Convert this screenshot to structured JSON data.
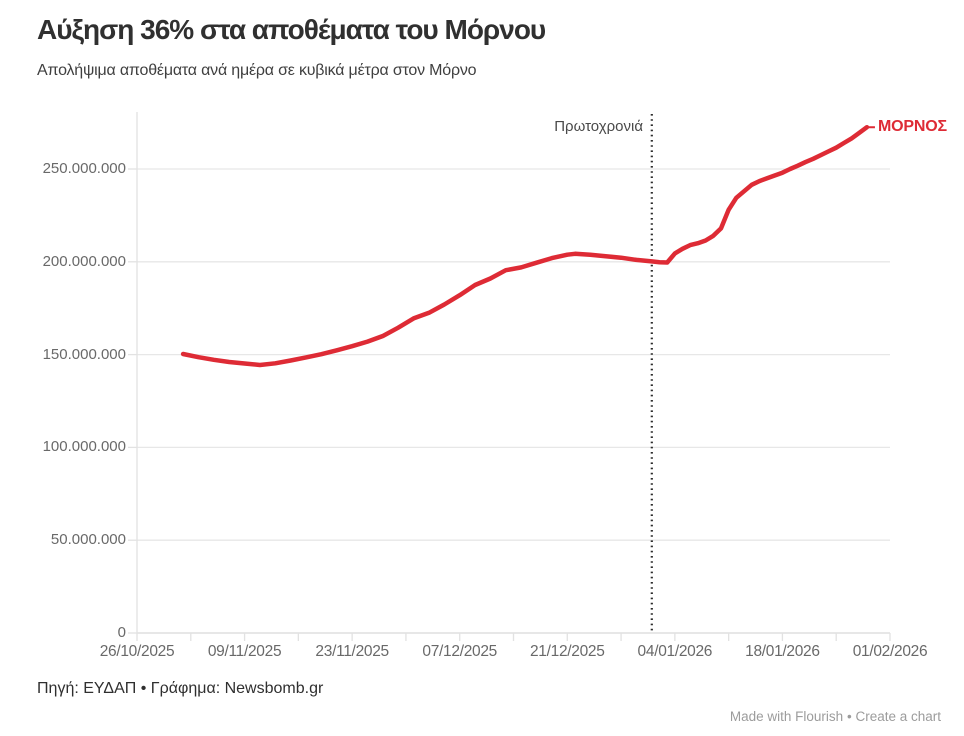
{
  "header": {
    "title": "Αύξηση 36% στα αποθέματα του Μόρνου",
    "subtitle": "Απολήψιμα αποθέματα ανά ημέρα σε κυβικά μέτρα στον Μόρνο"
  },
  "annotations": {
    "event_label": "Πρωτοχρονιά",
    "series_label": "ΜΟΡΝΟΣ"
  },
  "footer": {
    "source": "Πηγή: ΕΥΔΑΠ • Γράφημα: Newsbomb.gr",
    "made_with": "Made with Flourish",
    "separator": "•",
    "create_chart": "Create a chart"
  },
  "colors": {
    "line": "#de2b35",
    "grid": "#e7e7e7",
    "axis": "#e2e2e2",
    "event_line": "#2b2b2b",
    "axis_text": "#696969"
  },
  "chart_data": {
    "type": "line",
    "title": "Αύξηση 36% στα αποθέματα του Μόρνου",
    "subtitle": "Απολήψιμα αποθέματα ανά ημέρα σε κυβικά μέτρα στον Μόρνο",
    "xlabel": "",
    "ylabel": "",
    "grid": "horizontal",
    "legend": "none",
    "x_domain": [
      "26/10/2025",
      "01/02/2026"
    ],
    "x_tick_labels": [
      "26/10/2025",
      "09/11/2025",
      "23/11/2025",
      "07/12/2025",
      "21/12/2025",
      "04/01/2026",
      "18/01/2026",
      "01/02/2026"
    ],
    "minor_tick_interval_days": 7,
    "y_ticks": [
      0,
      50000000,
      100000000,
      150000000,
      200000000,
      250000000
    ],
    "y_tick_labels": [
      "0",
      "50.000.000",
      "100.000.000",
      "150.000.000",
      "200.000.000",
      "250.000.000"
    ],
    "ylim": [
      0,
      275000000
    ],
    "event_line": {
      "date": "01/01/2026",
      "label": "Πρωτοχρονιά",
      "style": "dotted"
    },
    "series": [
      {
        "name": "ΜΟΡΝΟΣ",
        "color": "#de2b35",
        "points": [
          [
            "01/11/2025",
            150300000
          ],
          [
            "03/11/2025",
            148600000
          ],
          [
            "05/11/2025",
            147200000
          ],
          [
            "07/11/2025",
            146000000
          ],
          [
            "09/11/2025",
            145200000
          ],
          [
            "11/11/2025",
            144400000
          ],
          [
            "13/11/2025",
            145300000
          ],
          [
            "15/11/2025",
            146800000
          ],
          [
            "17/11/2025",
            148500000
          ],
          [
            "19/11/2025",
            150200000
          ],
          [
            "21/11/2025",
            152300000
          ],
          [
            "23/11/2025",
            154500000
          ],
          [
            "25/11/2025",
            157000000
          ],
          [
            "27/11/2025",
            160000000
          ],
          [
            "29/11/2025",
            164500000
          ],
          [
            "01/12/2025",
            169500000
          ],
          [
            "03/12/2025",
            172500000
          ],
          [
            "05/12/2025",
            177000000
          ],
          [
            "07/12/2025",
            182000000
          ],
          [
            "09/12/2025",
            187500000
          ],
          [
            "11/12/2025",
            191000000
          ],
          [
            "13/12/2025",
            195500000
          ],
          [
            "15/12/2025",
            197000000
          ],
          [
            "17/12/2025",
            199500000
          ],
          [
            "19/12/2025",
            202000000
          ],
          [
            "21/12/2025",
            203800000
          ],
          [
            "22/12/2025",
            204300000
          ],
          [
            "24/12/2025",
            203800000
          ],
          [
            "26/12/2025",
            203000000
          ],
          [
            "28/12/2025",
            202200000
          ],
          [
            "30/12/2025",
            201000000
          ],
          [
            "01/01/2026",
            200200000
          ],
          [
            "02/01/2026",
            199800000
          ],
          [
            "03/01/2026",
            199600000
          ],
          [
            "04/01/2026",
            204500000
          ],
          [
            "05/01/2026",
            207000000
          ],
          [
            "06/01/2026",
            209000000
          ],
          [
            "07/01/2026",
            210000000
          ],
          [
            "08/01/2026",
            211500000
          ],
          [
            "09/01/2026",
            214000000
          ],
          [
            "10/01/2026",
            218000000
          ],
          [
            "11/01/2026",
            228000000
          ],
          [
            "12/01/2026",
            234500000
          ],
          [
            "13/01/2026",
            238000000
          ],
          [
            "14/01/2026",
            241500000
          ],
          [
            "15/01/2026",
            243500000
          ],
          [
            "16/01/2026",
            245000000
          ],
          [
            "17/01/2026",
            246500000
          ],
          [
            "18/01/2026",
            248000000
          ],
          [
            "19/01/2026",
            250000000
          ],
          [
            "20/01/2026",
            251800000
          ],
          [
            "21/01/2026",
            253700000
          ],
          [
            "22/01/2026",
            255500000
          ],
          [
            "23/01/2026",
            257500000
          ],
          [
            "24/01/2026",
            259500000
          ],
          [
            "25/01/2026",
            261500000
          ],
          [
            "26/01/2026",
            264000000
          ],
          [
            "27/01/2026",
            266500000
          ],
          [
            "28/01/2026",
            269500000
          ],
          [
            "29/01/2026",
            272500000
          ]
        ]
      }
    ]
  }
}
